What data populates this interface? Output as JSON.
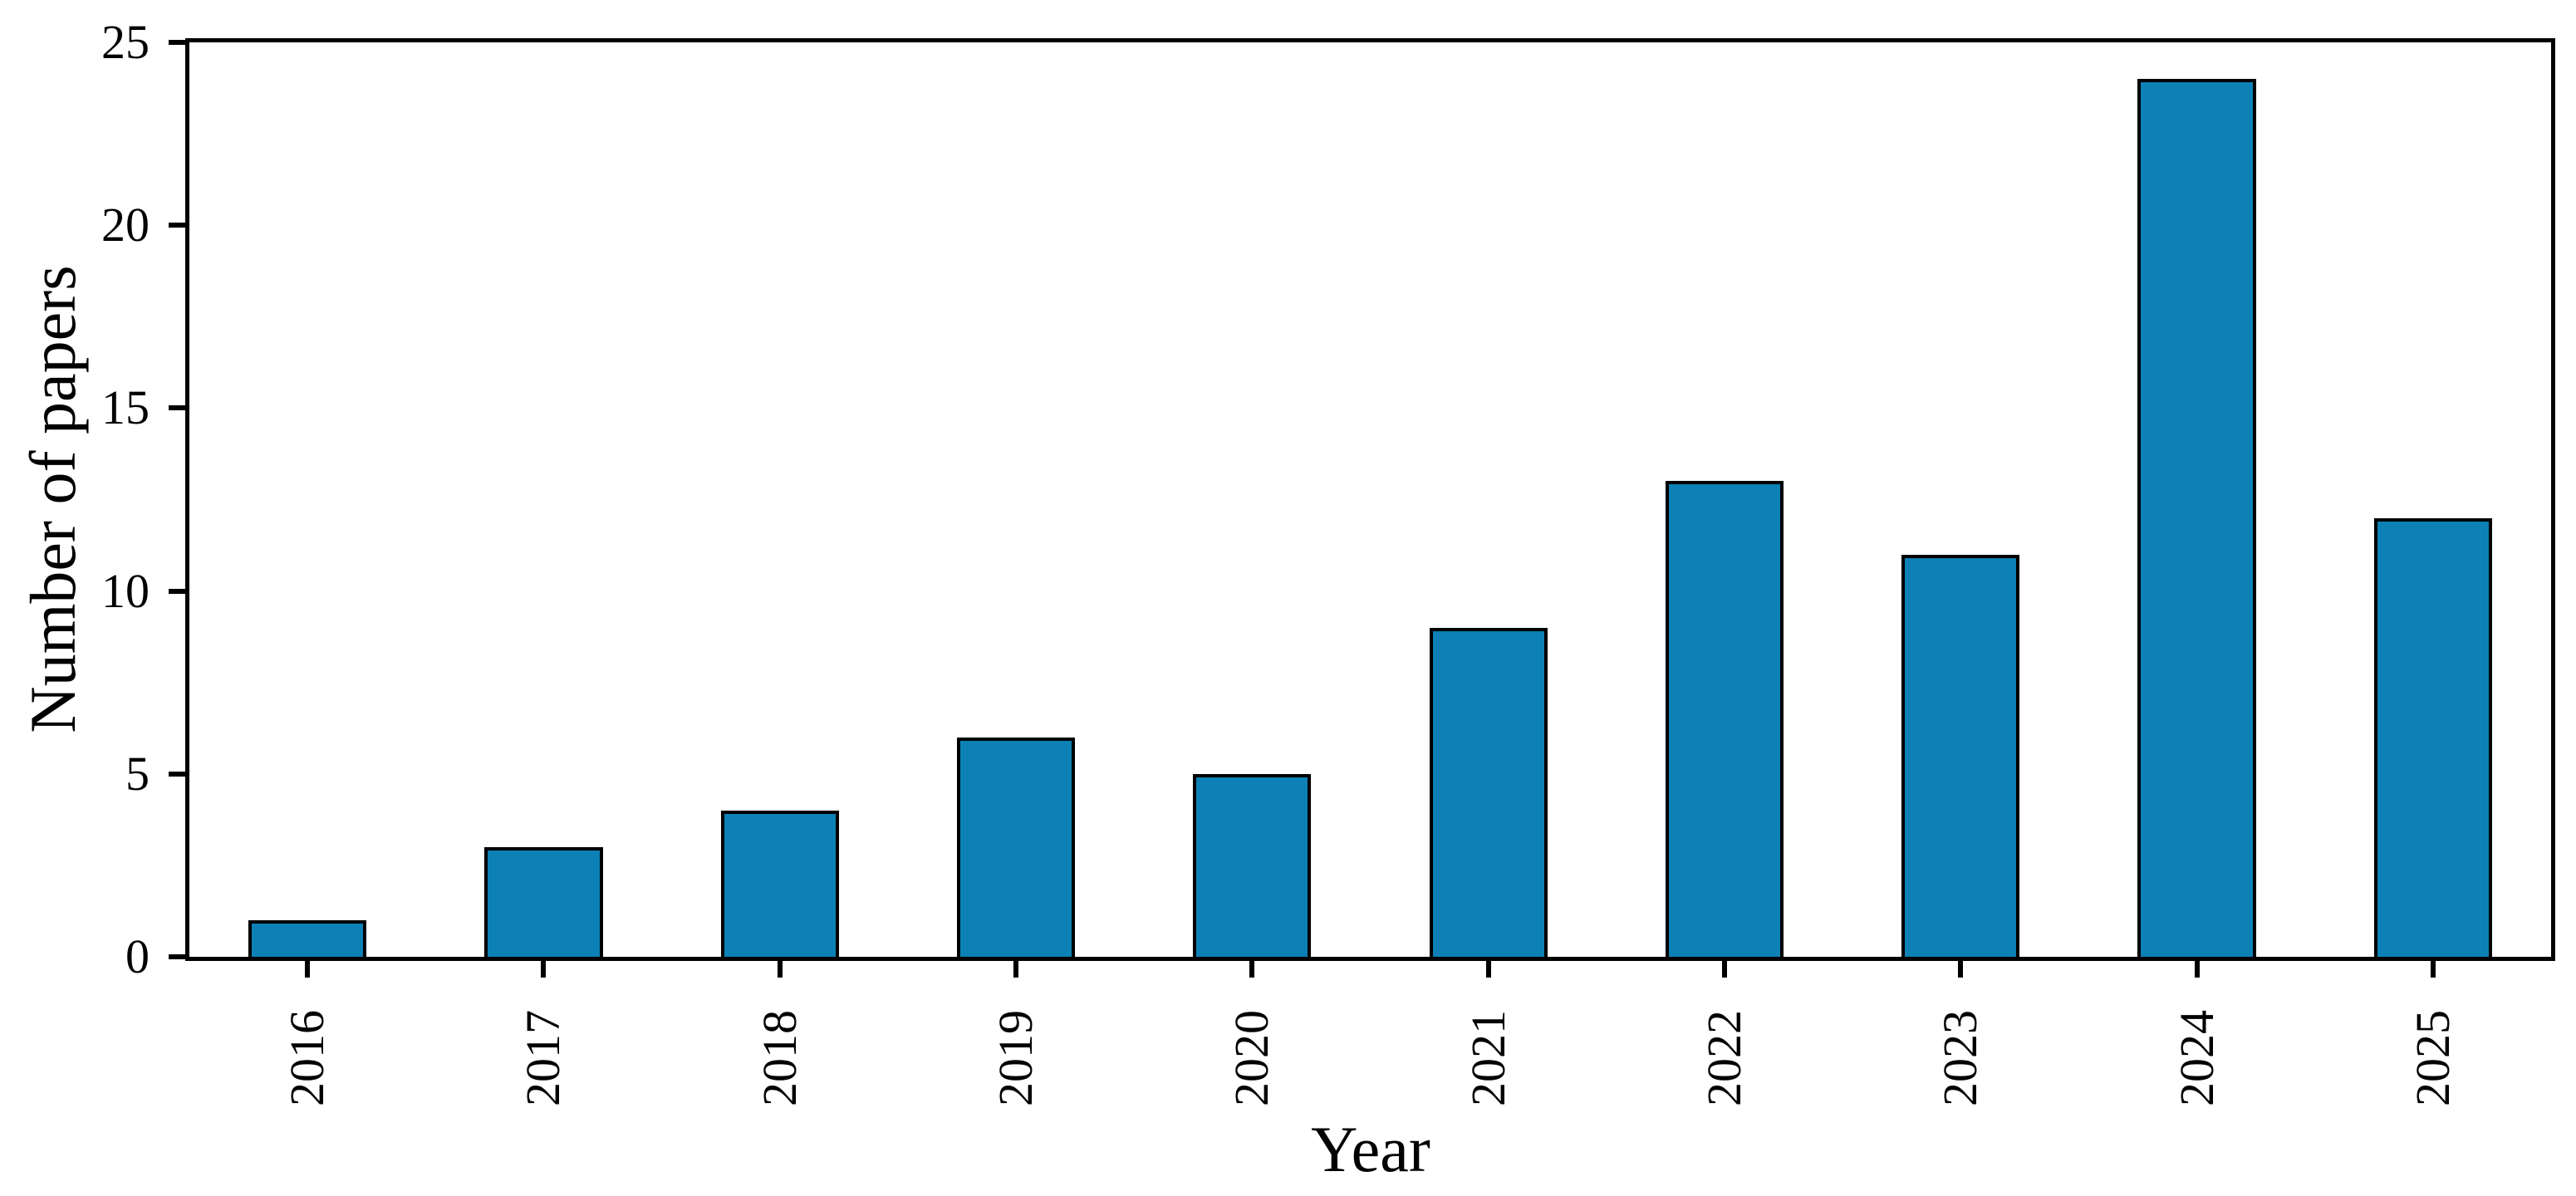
{
  "chart_data": {
    "type": "bar",
    "title": "",
    "xlabel": "Year",
    "ylabel": "Number of papers",
    "categories": [
      "2016",
      "2017",
      "2018",
      "2019",
      "2020",
      "2021",
      "2022",
      "2023",
      "2024",
      "2025"
    ],
    "values": [
      1,
      3,
      4,
      6,
      5,
      9,
      13,
      11,
      24,
      12
    ],
    "ylim": [
      0,
      25
    ],
    "yticks": [
      0,
      5,
      10,
      15,
      20,
      25
    ],
    "grid": false,
    "legend": null,
    "x_tick_label_rotation_deg": 90,
    "bar_width_fraction": 0.5,
    "bar_color": "#0d81b5",
    "bar_edge_color": "#000000",
    "axis_color": "#000000",
    "background_color": "#ffffff"
  }
}
